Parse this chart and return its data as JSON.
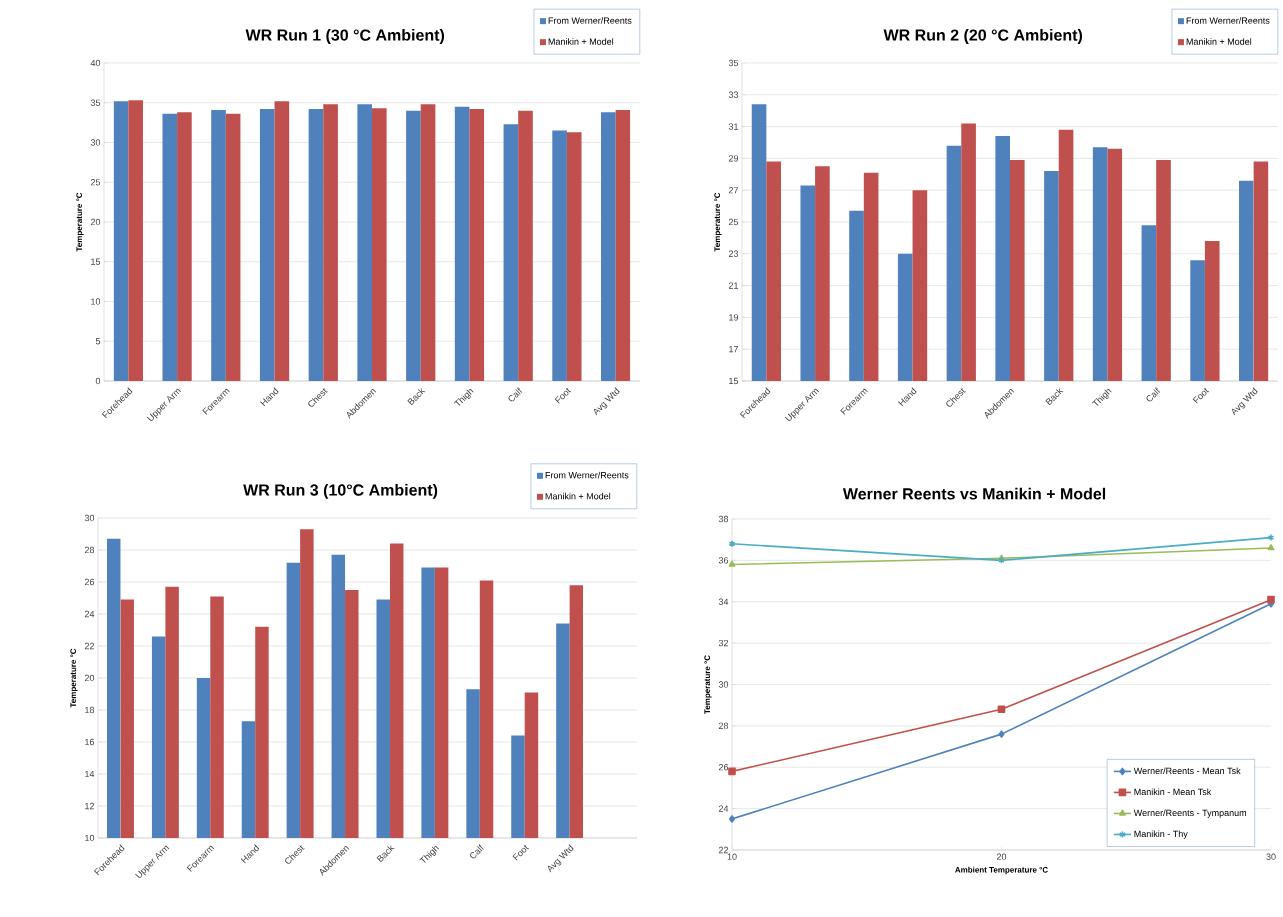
{
  "chart_data": [
    {
      "type": "bar",
      "title": "WR Run 1 (30 °C Ambient)",
      "ylabel": "Temperature °C",
      "categories": [
        "Forehead",
        "Upper Arm",
        "Forearm",
        "Hand",
        "Chest",
        "Abdomen",
        "Back",
        "Thigh",
        "Calf",
        "Foot",
        "Avg Wtd"
      ],
      "ylim": [
        0,
        40
      ],
      "yticks": [
        0,
        5,
        10,
        15,
        20,
        25,
        30,
        35,
        40
      ],
      "grid": "y",
      "legend": "top right",
      "series": [
        {
          "name": "From Werner/Reents",
          "color": "#4f81bd",
          "values": [
            35.2,
            33.6,
            34.1,
            34.2,
            34.2,
            34.8,
            34.0,
            34.5,
            32.3,
            31.5,
            33.8
          ]
        },
        {
          "name": "Manikin + Model",
          "color": "#c0504d",
          "values": [
            35.3,
            33.8,
            33.6,
            35.2,
            34.8,
            34.3,
            34.8,
            34.2,
            34.0,
            31.3,
            34.1
          ]
        }
      ]
    },
    {
      "type": "bar",
      "title": "WR Run 2 (20 °C Ambient)",
      "ylabel": "Temperature °C",
      "categories": [
        "Forehead",
        "Upper Arm",
        "Forearm",
        "Hand",
        "Chest",
        "Abdomen",
        "Back",
        "Thigh",
        "Calf",
        "Foot",
        "Avg Wtd"
      ],
      "ylim": [
        15,
        35
      ],
      "yticks": [
        15,
        17,
        19,
        21,
        23,
        25,
        27,
        29,
        31,
        33,
        35
      ],
      "grid": "y",
      "legend": "top right",
      "series": [
        {
          "name": "From Werner/Reents",
          "color": "#4f81bd",
          "values": [
            32.4,
            27.3,
            25.7,
            23.0,
            29.8,
            30.4,
            28.2,
            29.7,
            24.8,
            22.6,
            27.6
          ]
        },
        {
          "name": "Manikin + Model",
          "color": "#c0504d",
          "values": [
            28.8,
            28.5,
            28.1,
            27.0,
            31.2,
            28.9,
            30.8,
            29.6,
            28.9,
            23.8,
            28.8
          ]
        }
      ]
    },
    {
      "type": "bar",
      "title": "WR Run 3 (10°C Ambient)",
      "ylabel": "Temperature °C",
      "categories": [
        "Forehead",
        "Upper Arm",
        "Forearm",
        "Hand",
        "Chest",
        "Abdomen",
        "Back",
        "Thigh",
        "Calf",
        "Foot",
        "Avg Wtd",
        null
      ],
      "ylim": [
        10,
        30
      ],
      "yticks": [
        10,
        12,
        14,
        16,
        18,
        20,
        22,
        24,
        26,
        28,
        30
      ],
      "grid": "y",
      "legend": "top right",
      "series": [
        {
          "name": "From Werner/Reents",
          "color": "#4f81bd",
          "values": [
            28.7,
            22.6,
            20.0,
            17.3,
            27.2,
            27.7,
            24.9,
            26.9,
            19.3,
            16.4,
            23.4,
            null
          ]
        },
        {
          "name": "Manikin + Model",
          "color": "#c0504d",
          "values": [
            24.9,
            25.7,
            25.1,
            23.2,
            29.3,
            25.5,
            28.4,
            26.9,
            26.1,
            19.1,
            25.8,
            null
          ]
        }
      ]
    },
    {
      "type": "line",
      "title": "Werner Reents vs Manikin + Model",
      "xlabel": "Ambient Temperature °C",
      "ylabel": "Temperature °C",
      "x": [
        10,
        20,
        30
      ],
      "xlim": [
        10,
        30
      ],
      "xticks": [
        10,
        20,
        30
      ],
      "ylim": [
        22,
        38
      ],
      "yticks": [
        22,
        24,
        26,
        28,
        30,
        32,
        34,
        36,
        38
      ],
      "grid": "y",
      "legend": "bottom right",
      "line_style": "solid",
      "series": [
        {
          "name": "Werner/Reents - Mean Tsk",
          "color": "#4f81bd",
          "marker": "diamond",
          "values": [
            23.5,
            27.6,
            33.9
          ]
        },
        {
          "name": "Manikin - Mean Tsk",
          "color": "#c0504d",
          "marker": "square",
          "values": [
            25.8,
            28.8,
            34.1
          ]
        },
        {
          "name": "Werner/Reents - Tympanum",
          "color": "#9bbb59",
          "marker": "triangle",
          "values": [
            35.8,
            36.1,
            36.6
          ]
        },
        {
          "name": "Manikin - Thy",
          "color": "#4bacc6",
          "marker": "cross",
          "values": [
            36.8,
            36.0,
            37.1
          ]
        }
      ]
    }
  ]
}
